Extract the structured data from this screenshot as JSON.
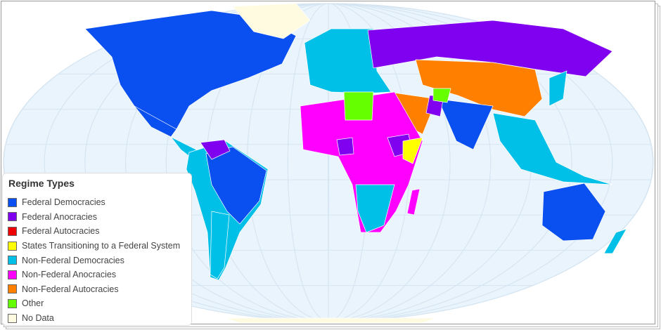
{
  "legend": {
    "title": "Regime Types",
    "items": [
      {
        "label": "Federal Democracies",
        "color": "#0a4ff0"
      },
      {
        "label": "Federal Anocracies",
        "color": "#8000f0"
      },
      {
        "label": "Federal Autocracies",
        "color": "#f00000"
      },
      {
        "label": "States Transitioning to a Federal System",
        "color": "#ffff00"
      },
      {
        "label": "Non-Federal Democracies",
        "color": "#00c0e8"
      },
      {
        "label": "Non-Federal Anocracies",
        "color": "#ff00ff"
      },
      {
        "label": "Non-Federal Autocracies",
        "color": "#ff8000"
      },
      {
        "label": "Other",
        "color": "#66ff00"
      },
      {
        "label": "No Data",
        "color": "#fffbe0"
      }
    ]
  },
  "map": {
    "ocean_color": "#eaf4fc",
    "grid_color": "#d5e5f2",
    "regions": [
      {
        "name": "Canada/USA",
        "category": 0
      },
      {
        "name": "Greenland",
        "category": 8
      },
      {
        "name": "Mexico",
        "category": 0
      },
      {
        "name": "Central America",
        "category": 4
      },
      {
        "name": "South America",
        "category": 4
      },
      {
        "name": "Brazil",
        "category": 0
      },
      {
        "name": "Venezuela",
        "category": 1
      },
      {
        "name": "Argentina",
        "category": 4
      },
      {
        "name": "Europe",
        "category": 4
      },
      {
        "name": "Russia",
        "category": 1
      },
      {
        "name": "China/Central Asia",
        "category": 6
      },
      {
        "name": "Middle East",
        "category": 6
      },
      {
        "name": "India",
        "category": 0
      },
      {
        "name": "Pakistan",
        "category": 1
      },
      {
        "name": "Afghanistan",
        "category": 7
      },
      {
        "name": "Africa",
        "category": 5
      },
      {
        "name": "Libya",
        "category": 7
      },
      {
        "name": "Nigeria",
        "category": 1
      },
      {
        "name": "Ethiopia",
        "category": 1
      },
      {
        "name": "Somalia",
        "category": 3
      },
      {
        "name": "Southern Africa",
        "category": 4
      },
      {
        "name": "Madagascar",
        "category": 5
      },
      {
        "name": "Southeast Asia",
        "category": 4
      },
      {
        "name": "Japan",
        "category": 4
      },
      {
        "name": "Australia",
        "category": 0
      },
      {
        "name": "New Zealand",
        "category": 4
      },
      {
        "name": "Antarctica",
        "category": 8
      }
    ]
  }
}
